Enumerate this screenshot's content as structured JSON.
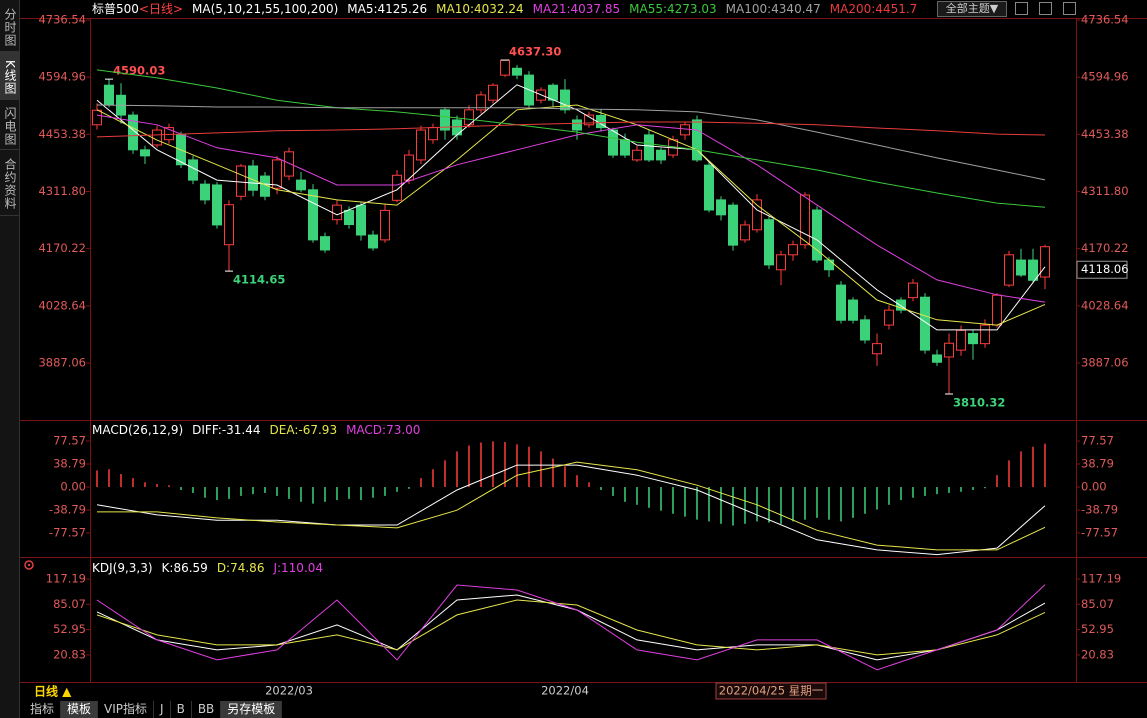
{
  "ui": {
    "side_tabs": [
      "分时图",
      "K线图",
      "闪电图",
      "合约资料"
    ],
    "theme_button": "全部主题▼",
    "period_button": "日线 ▲",
    "crosshair_date": "2022/04/25 星期一",
    "bottom_tabs": [
      "指标",
      "模板",
      "VIP指标",
      "J",
      "B",
      "BB",
      "另存模板"
    ]
  },
  "chart_data": [
    {
      "type": "candlestick",
      "title": "标普500",
      "period": "<日线>",
      "indicator": "MA(5,10,21,55,100,200)",
      "categories": [
        null,
        null,
        null,
        null,
        null,
        null,
        null,
        null,
        null,
        null,
        null,
        null,
        null,
        null,
        null,
        null,
        "2022/03",
        null,
        null,
        null,
        null,
        null,
        null,
        null,
        null,
        null,
        null,
        null,
        null,
        null,
        null,
        null,
        null,
        null,
        null,
        null,
        null,
        null,
        null,
        "2022/04",
        null,
        null,
        null,
        null,
        null,
        null,
        null,
        null,
        null,
        null,
        null,
        null,
        null,
        null,
        null,
        null,
        null,
        null,
        null,
        null,
        null,
        null,
        null,
        null,
        null,
        null,
        null,
        null,
        null,
        null,
        null,
        null,
        null,
        null,
        null,
        null,
        null,
        null,
        null,
        null
      ],
      "open": [
        4477,
        4575,
        4550,
        4501,
        4415,
        4427,
        4440,
        4452,
        4390,
        4330,
        4328,
        4180,
        4300,
        4375,
        4350,
        4320,
        4350,
        4340,
        4316,
        4200,
        4242,
        4265,
        4278,
        4204,
        4192,
        4290,
        4340,
        4390,
        4440,
        4514,
        4489,
        4477,
        4514,
        4538,
        4600,
        4617,
        4600,
        4538,
        4575,
        4563,
        4489,
        4477,
        4500,
        4464,
        4440,
        4390,
        4452,
        4414,
        4402,
        4452,
        4489,
        4377,
        4291,
        4278,
        4192,
        4217,
        4242,
        4118,
        4155,
        4180,
        4266,
        4142,
        4080,
        4043,
        3994,
        3910,
        3981,
        4043,
        4049,
        4050,
        3907,
        3902,
        3919,
        3960,
        3935,
        3981,
        4080,
        4142,
        4142,
        4100
      ],
      "high": [
        4530,
        4590.03,
        4580,
        4510,
        4425,
        4475,
        4480,
        4460,
        4400,
        4340,
        4335,
        4290,
        4380,
        4390,
        4360,
        4400,
        4420,
        4360,
        4330,
        4210,
        4290,
        4275,
        4285,
        4215,
        4280,
        4365,
        4415,
        4475,
        4480,
        4520,
        4500,
        4525,
        4560,
        4580,
        4637.3,
        4625,
        4610,
        4570,
        4580,
        4590,
        4500,
        4510,
        4515,
        4470,
        4455,
        4425,
        4465,
        4420,
        4450,
        4485,
        4500,
        4385,
        4300,
        4285,
        4240,
        4305,
        4250,
        4165,
        4190,
        4310,
        4275,
        4150,
        4090,
        4050,
        4005,
        3960,
        4030,
        4050,
        4095,
        4060,
        3920,
        3960,
        3980,
        3970,
        3995,
        4060,
        4165,
        4170,
        4170,
        4180
      ],
      "low": [
        4465,
        4520,
        4480,
        4405,
        4380,
        4420,
        4430,
        4370,
        4330,
        4280,
        4220,
        4114.65,
        4290,
        4300,
        4290,
        4305,
        4340,
        4310,
        4185,
        4160,
        4230,
        4220,
        4190,
        4165,
        4185,
        4285,
        4330,
        4380,
        4430,
        4440,
        4440,
        4470,
        4505,
        4530,
        4595,
        4590,
        4520,
        4530,
        4520,
        4505,
        4440,
        4470,
        4460,
        4395,
        4395,
        4385,
        4385,
        4380,
        4395,
        4440,
        4385,
        4260,
        4240,
        4165,
        4185,
        4210,
        4120,
        4080,
        4140,
        4170,
        4135,
        4100,
        3985,
        3985,
        3935,
        3880,
        3970,
        4010,
        4040,
        3910,
        3880,
        3810.32,
        3905,
        3895,
        3925,
        3975,
        4075,
        4100,
        4085,
        4070
      ],
      "close": [
        4513,
        4526,
        4501,
        4415,
        4400,
        4464,
        4470,
        4378,
        4340,
        4291,
        4229,
        4279,
        4375,
        4315,
        4300,
        4390,
        4410,
        4316,
        4192,
        4167,
        4278,
        4230,
        4204,
        4172,
        4265,
        4352,
        4402,
        4464,
        4470,
        4464,
        4452,
        4514,
        4551,
        4575,
        4637,
        4600,
        4526,
        4563,
        4538,
        4514,
        4464,
        4501,
        4470,
        4402,
        4402,
        4414,
        4390,
        4390,
        4440,
        4477,
        4390,
        4266,
        4254,
        4179,
        4229,
        4291,
        4130,
        4155,
        4180,
        4303,
        4142,
        4118,
        3993,
        3993,
        3944,
        3935,
        4018,
        4018,
        4085,
        3919,
        3889,
        3936,
        3968,
        3935,
        3981,
        4055,
        4155,
        4105,
        4092,
        4175
      ],
      "up_color": "#ff3c3c",
      "down_color": "#3cd27a",
      "ylim": [
        3750.9,
        4756.3
      ],
      "yticks": [
        4736.54,
        4594.96,
        4453.38,
        {
          "value": 4311.8,
          "label": "4311.80"
        },
        4170.22,
        4028.64,
        3887.06
      ],
      "last_price": 4118.06,
      "annotations": [
        4590.03,
        4114.65,
        {
          "value": 4637.3,
          "label": "4637.30"
        },
        3810.32
      ],
      "series": [
        {
          "name": "MA5:4125.26",
          "color": "#ffffff",
          "x": [
            0,
            5,
            10,
            15,
            20,
            25,
            30,
            35,
            40,
            45,
            50,
            55,
            60,
            65,
            70,
            75,
            79
          ],
          "values": [
            4538,
            4415,
            4340,
            4328,
            4254,
            4316,
            4452,
            4576,
            4514,
            4427,
            4415,
            4266,
            4192,
            4068,
            3969,
            3969,
            4125.26
          ]
        },
        {
          "name": "MA10:4032.24",
          "color": "#e6e64c",
          "x": [
            0,
            5,
            10,
            15,
            20,
            25,
            30,
            35,
            40,
            45,
            50,
            55,
            60,
            65,
            70,
            75,
            79
          ],
          "values": [
            4514,
            4439,
            4378,
            4316,
            4291,
            4278,
            4390,
            4514,
            4526,
            4477,
            4415,
            4278,
            4167,
            4043,
            3994,
            3981,
            4032.24
          ]
        },
        {
          "name": "MA21:4037.85",
          "color": "#e040e0",
          "x": [
            0,
            5,
            10,
            15,
            20,
            25,
            30,
            35,
            40,
            45,
            50,
            55,
            60,
            65,
            70,
            75,
            79
          ],
          "values": [
            4501,
            4477,
            4420,
            4395,
            4328,
            4328,
            4378,
            4415,
            4452,
            4477,
            4464,
            4378,
            4278,
            4179,
            4093,
            4056,
            4037.85
          ]
        },
        {
          "name": "MA55:4273.03",
          "color": "#3cc83c",
          "x": [
            0,
            5,
            10,
            15,
            20,
            25,
            30,
            35,
            40,
            45,
            50,
            55,
            60,
            65,
            70,
            75,
            79
          ],
          "values": [
            4613,
            4593,
            4568,
            4538,
            4519,
            4509,
            4494,
            4477,
            4459,
            4434,
            4415,
            4390,
            4365,
            4335,
            4308,
            4283,
            4273.03
          ]
        },
        {
          "name": "MA100:4340.47",
          "color": "#a0a0a0",
          "x": [
            0,
            5,
            10,
            15,
            20,
            25,
            30,
            35,
            40,
            45,
            50,
            55,
            60,
            65,
            70,
            75,
            79
          ],
          "values": [
            4526,
            4524,
            4521,
            4521,
            4519,
            4519,
            4519,
            4519,
            4516,
            4514,
            4509,
            4489,
            4459,
            4427,
            4395,
            4365,
            4340.47
          ]
        },
        {
          "name": "MA200:4451.7",
          "color": "#e83c3c",
          "x": [
            0,
            5,
            10,
            15,
            20,
            25,
            30,
            35,
            40,
            45,
            50,
            55,
            60,
            65,
            70,
            75,
            79
          ],
          "values": [
            4447,
            4452,
            4457,
            4462,
            4464,
            4467,
            4472,
            4477,
            4481,
            4484,
            4484,
            4481,
            4477,
            4469,
            4462,
            4454,
            4451.7
          ]
        }
      ]
    },
    {
      "type": "macd",
      "title": "MACD(26,12,9)",
      "bar_label": "MACD:73.00",
      "bar_label_color": "#e040e0",
      "values": [
        28,
        30,
        22,
        15,
        8,
        5,
        3,
        -5,
        -10,
        -18,
        -22,
        -20,
        -15,
        -12,
        -10,
        -15,
        -20,
        -25,
        -28,
        -25,
        -22,
        -20,
        -22,
        -18,
        -15,
        -8,
        -3,
        15,
        30,
        45,
        60,
        70,
        75,
        77,
        76,
        72,
        68,
        60,
        48,
        35,
        20,
        8,
        -5,
        -15,
        -25,
        -30,
        -35,
        -40,
        -45,
        -50,
        -55,
        -58,
        -62,
        -65,
        -62,
        -58,
        -60,
        -62,
        -58,
        -55,
        -52,
        -55,
        -58,
        -52,
        -45,
        -38,
        -30,
        -22,
        -18,
        -15,
        -12,
        -10,
        -8,
        -5,
        -2,
        20,
        45,
        60,
        68,
        73
      ],
      "up_color": "#ff3c3c",
      "down_color": "#3cd27a",
      "ylim": [
        -118,
        104.6
      ],
      "yticks": [
        77.57,
        38.79,
        {
          "value": 0,
          "label": "0.00"
        },
        -38.79,
        -77.57
      ],
      "series": [
        {
          "name": "DIFF:-31.44",
          "color": "#ffffff",
          "x": [
            0,
            5,
            10,
            15,
            20,
            25,
            30,
            35,
            40,
            45,
            50,
            55,
            60,
            65,
            70,
            75,
            79
          ],
          "values": [
            -30,
            -47,
            -56,
            -56,
            -64,
            -64,
            -5,
            37,
            37,
            20,
            -5,
            -47,
            -89,
            -106,
            -114,
            -103,
            -31.44
          ]
        },
        {
          "name": "DEA:-67.93",
          "color": "#e6e64c",
          "x": [
            0,
            5,
            10,
            15,
            20,
            25,
            30,
            35,
            40,
            45,
            50,
            55,
            60,
            65,
            70,
            75,
            79
          ],
          "values": [
            -42,
            -42,
            -52,
            -59,
            -64,
            -69,
            -39,
            20,
            42,
            29,
            3,
            -30,
            -73,
            -98,
            -106,
            -106,
            -67.93
          ]
        }
      ]
    },
    {
      "type": "line",
      "title": "KDJ(9,3,3)",
      "ylim": [
        -11,
        137.5
      ],
      "yticks": [
        117.19,
        85.07,
        52.95,
        20.83
      ],
      "series": [
        {
          "name": "K:86.59",
          "color": "#ffffff",
          "x": [
            0,
            5,
            10,
            15,
            20,
            25,
            30,
            35,
            40,
            45,
            50,
            55,
            60,
            65,
            70,
            75,
            79
          ],
          "values": [
            75.4,
            39.9,
            27.2,
            33.5,
            58.9,
            27.2,
            90.6,
            96.9,
            77.9,
            39.9,
            27.2,
            33.5,
            33.5,
            14.5,
            27.2,
            52.5,
            86.59
          ]
        },
        {
          "name": "D:74.86",
          "color": "#e6e64c",
          "x": [
            0,
            5,
            10,
            15,
            20,
            25,
            30,
            35,
            40,
            45,
            50,
            55,
            60,
            65,
            70,
            75,
            79
          ],
          "values": [
            71.6,
            46.2,
            33.5,
            33.5,
            46.2,
            27.2,
            71.6,
            90.6,
            84.2,
            52.5,
            33.5,
            27.2,
            33.5,
            20.8,
            27.2,
            46.2,
            74.86
          ]
        },
        {
          "name": "J:110.04",
          "color": "#e040e0",
          "x": [
            0,
            5,
            10,
            15,
            20,
            25,
            30,
            35,
            40,
            45,
            50,
            55,
            60,
            65,
            70,
            75,
            79
          ],
          "values": [
            90.6,
            39.9,
            14.5,
            27.2,
            90.6,
            14.5,
            109.6,
            103.2,
            77.9,
            27.2,
            14.5,
            39.9,
            39.9,
            1.9,
            27.2,
            52.5,
            110.04
          ]
        }
      ]
    }
  ]
}
